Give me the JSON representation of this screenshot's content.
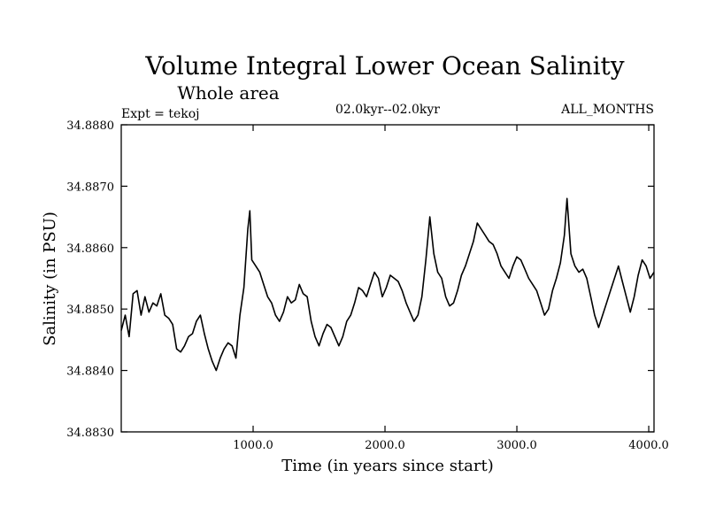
{
  "chart_data": {
    "type": "line",
    "title": "Volume Integral Lower Ocean Salinity",
    "subtitle": "Whole area",
    "experiment_label": "Expt = tekoj",
    "period_label": "02.0kyr--02.0kyr",
    "months_label": "ALL_MONTHS",
    "xlabel": "Time (in years since start)",
    "ylabel": "Salinity (in PSU)",
    "xlim": [
      0,
      4040
    ],
    "ylim": [
      34.883,
      34.888
    ],
    "xticks": [
      {
        "value": 1000,
        "label": "1000.0"
      },
      {
        "value": 2000,
        "label": "2000.0"
      },
      {
        "value": 3000,
        "label": "3000.0"
      },
      {
        "value": 4000,
        "label": "4000.0"
      }
    ],
    "yticks": [
      {
        "value": 34.883,
        "label": "34.8830"
      },
      {
        "value": 34.884,
        "label": "34.8840"
      },
      {
        "value": 34.885,
        "label": "34.8850"
      },
      {
        "value": 34.886,
        "label": "34.8860"
      },
      {
        "value": 34.887,
        "label": "34.8870"
      },
      {
        "value": 34.888,
        "label": "34.8880"
      }
    ],
    "series": [
      {
        "name": "Volume integral lower ocean salinity",
        "points": [
          [
            0,
            34.88465
          ],
          [
            30,
            34.8849
          ],
          [
            60,
            34.88455
          ],
          [
            90,
            34.88525
          ],
          [
            120,
            34.8853
          ],
          [
            150,
            34.8849
          ],
          [
            180,
            34.8852
          ],
          [
            210,
            34.88495
          ],
          [
            240,
            34.8851
          ],
          [
            270,
            34.88505
          ],
          [
            300,
            34.88525
          ],
          [
            330,
            34.8849
          ],
          [
            360,
            34.88485
          ],
          [
            390,
            34.88475
          ],
          [
            420,
            34.88435
          ],
          [
            450,
            34.8843
          ],
          [
            480,
            34.8844
          ],
          [
            510,
            34.88455
          ],
          [
            540,
            34.8846
          ],
          [
            570,
            34.8848
          ],
          [
            600,
            34.8849
          ],
          [
            630,
            34.8846
          ],
          [
            660,
            34.88435
          ],
          [
            690,
            34.88415
          ],
          [
            720,
            34.884
          ],
          [
            750,
            34.8842
          ],
          [
            780,
            34.88435
          ],
          [
            810,
            34.88445
          ],
          [
            840,
            34.8844
          ],
          [
            870,
            34.8842
          ],
          [
            900,
            34.8849
          ],
          [
            930,
            34.88535
          ],
          [
            960,
            34.8863
          ],
          [
            975,
            34.8866
          ],
          [
            990,
            34.8858
          ],
          [
            1020,
            34.8857
          ],
          [
            1050,
            34.8856
          ],
          [
            1080,
            34.8854
          ],
          [
            1110,
            34.8852
          ],
          [
            1140,
            34.8851
          ],
          [
            1170,
            34.8849
          ],
          [
            1200,
            34.8848
          ],
          [
            1230,
            34.88495
          ],
          [
            1260,
            34.8852
          ],
          [
            1290,
            34.8851
          ],
          [
            1320,
            34.88515
          ],
          [
            1350,
            34.8854
          ],
          [
            1380,
            34.88525
          ],
          [
            1410,
            34.8852
          ],
          [
            1440,
            34.8848
          ],
          [
            1470,
            34.88455
          ],
          [
            1500,
            34.8844
          ],
          [
            1530,
            34.8846
          ],
          [
            1560,
            34.88475
          ],
          [
            1590,
            34.8847
          ],
          [
            1620,
            34.88455
          ],
          [
            1650,
            34.8844
          ],
          [
            1680,
            34.88455
          ],
          [
            1710,
            34.8848
          ],
          [
            1740,
            34.8849
          ],
          [
            1770,
            34.8851
          ],
          [
            1800,
            34.88535
          ],
          [
            1830,
            34.8853
          ],
          [
            1860,
            34.8852
          ],
          [
            1890,
            34.8854
          ],
          [
            1920,
            34.8856
          ],
          [
            1950,
            34.8855
          ],
          [
            1980,
            34.8852
          ],
          [
            2010,
            34.88535
          ],
          [
            2040,
            34.88555
          ],
          [
            2070,
            34.8855
          ],
          [
            2100,
            34.88545
          ],
          [
            2130,
            34.8853
          ],
          [
            2160,
            34.8851
          ],
          [
            2190,
            34.88495
          ],
          [
            2220,
            34.8848
          ],
          [
            2250,
            34.8849
          ],
          [
            2280,
            34.8852
          ],
          [
            2310,
            34.8858
          ],
          [
            2340,
            34.8865
          ],
          [
            2370,
            34.8859
          ],
          [
            2400,
            34.8856
          ],
          [
            2430,
            34.8855
          ],
          [
            2460,
            34.8852
          ],
          [
            2490,
            34.88505
          ],
          [
            2520,
            34.8851
          ],
          [
            2550,
            34.8853
          ],
          [
            2580,
            34.88555
          ],
          [
            2610,
            34.8857
          ],
          [
            2640,
            34.8859
          ],
          [
            2670,
            34.8861
          ],
          [
            2700,
            34.8864
          ],
          [
            2730,
            34.8863
          ],
          [
            2760,
            34.8862
          ],
          [
            2790,
            34.8861
          ],
          [
            2820,
            34.88605
          ],
          [
            2850,
            34.8859
          ],
          [
            2880,
            34.8857
          ],
          [
            2910,
            34.8856
          ],
          [
            2940,
            34.8855
          ],
          [
            2970,
            34.8857
          ],
          [
            3000,
            34.88585
          ],
          [
            3030,
            34.8858
          ],
          [
            3060,
            34.88565
          ],
          [
            3090,
            34.8855
          ],
          [
            3120,
            34.8854
          ],
          [
            3150,
            34.8853
          ],
          [
            3180,
            34.8851
          ],
          [
            3210,
            34.8849
          ],
          [
            3240,
            34.885
          ],
          [
            3270,
            34.8853
          ],
          [
            3300,
            34.8855
          ],
          [
            3330,
            34.88575
          ],
          [
            3360,
            34.8862
          ],
          [
            3380,
            34.8868
          ],
          [
            3410,
            34.8859
          ],
          [
            3440,
            34.8857
          ],
          [
            3470,
            34.8856
          ],
          [
            3500,
            34.88565
          ],
          [
            3530,
            34.8855
          ],
          [
            3560,
            34.8852
          ],
          [
            3590,
            34.8849
          ],
          [
            3620,
            34.8847
          ],
          [
            3650,
            34.8849
          ],
          [
            3680,
            34.8851
          ],
          [
            3710,
            34.8853
          ],
          [
            3740,
            34.8855
          ],
          [
            3770,
            34.8857
          ],
          [
            3800,
            34.88545
          ],
          [
            3830,
            34.8852
          ],
          [
            3860,
            34.88495
          ],
          [
            3890,
            34.8852
          ],
          [
            3920,
            34.88555
          ],
          [
            3950,
            34.8858
          ],
          [
            3980,
            34.8857
          ],
          [
            4010,
            34.8855
          ],
          [
            4040,
            34.8856
          ]
        ]
      }
    ]
  }
}
